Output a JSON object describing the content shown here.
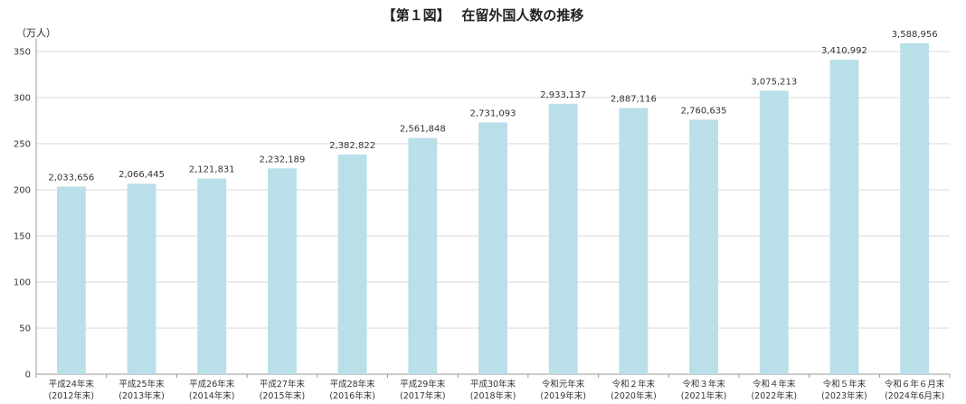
{
  "chart_data": {
    "type": "bar",
    "title": "【第１図】　 在留外国人数の推移",
    "ylabel": "（万人）",
    "ylim": [
      0,
      350
    ],
    "yticks": [
      0,
      50,
      100,
      150,
      200,
      250,
      300,
      350
    ],
    "grid": true,
    "categories": [
      [
        "平成24年末",
        "(2012年末)"
      ],
      [
        "平成25年末",
        "(2013年末)"
      ],
      [
        "平成26年末",
        "(2014年末)"
      ],
      [
        "平成27年末",
        "(2015年末)"
      ],
      [
        "平成28年末",
        "(2016年末)"
      ],
      [
        "平成29年末",
        "(2017年末)"
      ],
      [
        "平成30年末",
        "(2018年末)"
      ],
      [
        "令和元年末",
        "(2019年末)"
      ],
      [
        "令和２年末",
        "(2020年末)"
      ],
      [
        "令和３年末",
        "(2021年末)"
      ],
      [
        "令和４年末",
        "(2022年末)"
      ],
      [
        "令和５年末",
        "(2023年末)"
      ],
      [
        "令和６年６月末",
        "(2024年6月末)"
      ]
    ],
    "values": [
      203.3656,
      206.6445,
      212.1831,
      223.2189,
      238.2822,
      256.1848,
      273.1093,
      293.3137,
      288.7116,
      276.0635,
      307.5213,
      341.0992,
      358.8956
    ],
    "labels": [
      "2,033,656",
      "2,066,445",
      "2,121,831",
      "2,232,189",
      "2,382,822",
      "2,561,848",
      "2,731,093",
      "2,933,137",
      "2,887,116",
      "2,760,635",
      "3,075,213",
      "3,410,992",
      "3,588,956"
    ],
    "bar_color": "#b9dfe9",
    "grid_color": "#d9d9d9",
    "axis_color": "#999999"
  }
}
